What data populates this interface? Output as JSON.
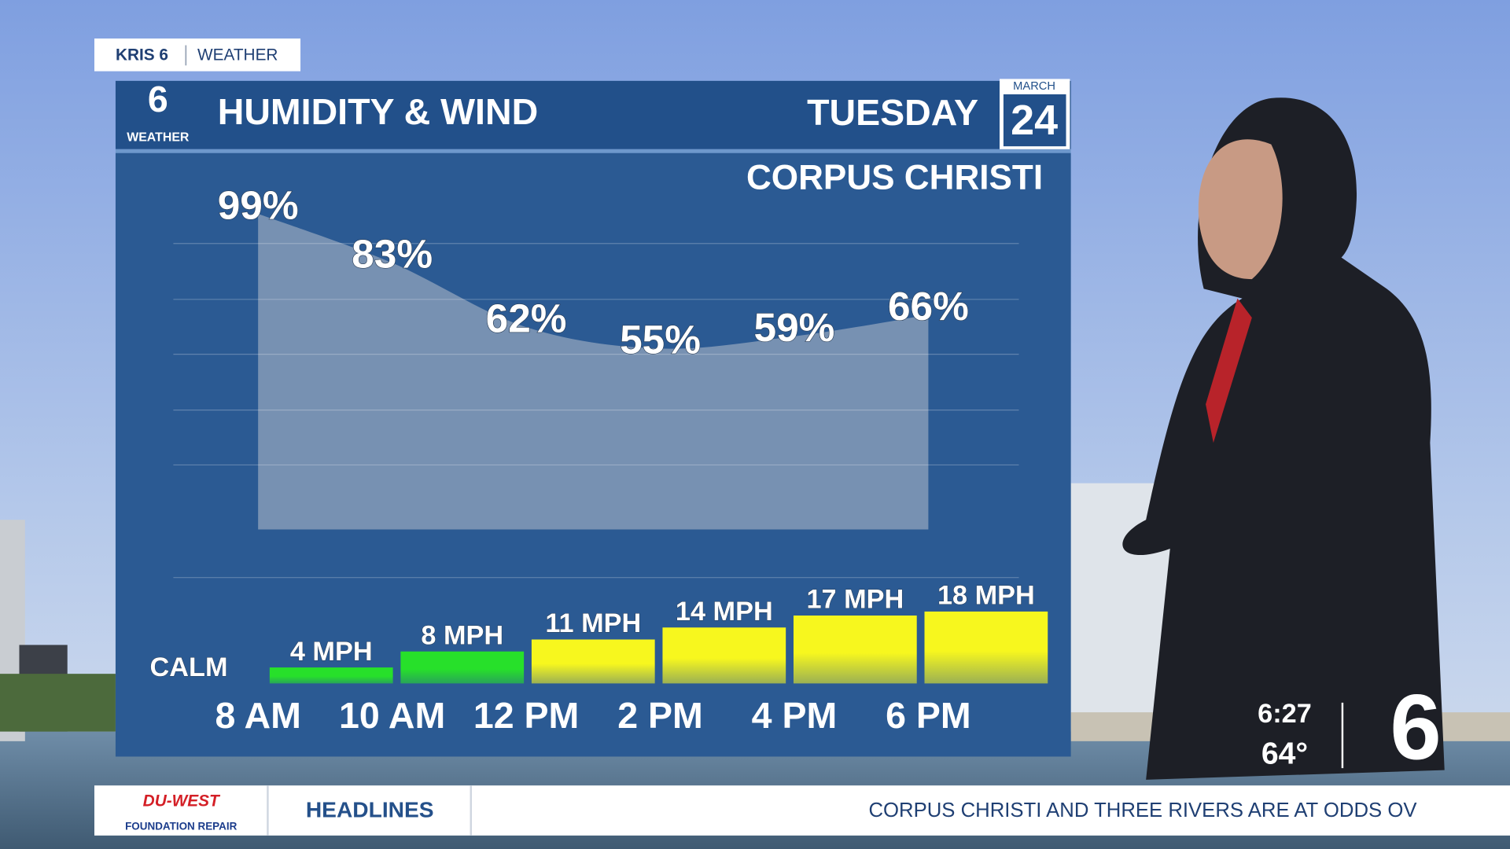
{
  "brand": {
    "station": "KRIS 6",
    "section": "WEATHER",
    "logo_number": "6",
    "logo_label": "WEATHER"
  },
  "header": {
    "title": "HUMIDITY & WIND",
    "day": "TUESDAY",
    "month": "MARCH",
    "date": "24",
    "location": "CORPUS CHRISTI"
  },
  "chart_data": [
    {
      "type": "area",
      "categories": [
        "8 AM",
        "10 AM",
        "12 PM",
        "2 PM",
        "4 PM",
        "6 PM"
      ],
      "values": [
        99,
        83,
        62,
        55,
        59,
        66
      ],
      "value_labels": [
        "99%",
        "83%",
        "62%",
        "55%",
        "59%",
        "66%"
      ],
      "color": "#7f97b6",
      "ylim": [
        0,
        100
      ]
    },
    {
      "type": "bar",
      "categories": [
        null,
        null,
        null,
        null,
        null,
        null,
        null
      ],
      "values": [
        0,
        4,
        8,
        11,
        14,
        17,
        18
      ],
      "value_labels": [
        "CALM",
        "4 MPH",
        "8 MPH",
        "11 MPH",
        "14 MPH",
        "17 MPH",
        "18 MPH"
      ],
      "colors": [
        "#27e02a",
        "#27e02a",
        "#27e02a",
        "#f7f71e",
        "#f7f71e",
        "#f7f71e",
        "#f7f71e"
      ],
      "ylim": [
        0,
        20
      ]
    }
  ],
  "corner": {
    "time": "6:27",
    "temperature": "64°",
    "logo": "6"
  },
  "ticker": {
    "sponsor": "DU-WEST",
    "sponsor_tagline": "FOUNDATION REPAIR",
    "label": "HEADLINES",
    "text": "CORPUS CHRISTI AND THREE RIVERS ARE AT ODDS OV"
  }
}
